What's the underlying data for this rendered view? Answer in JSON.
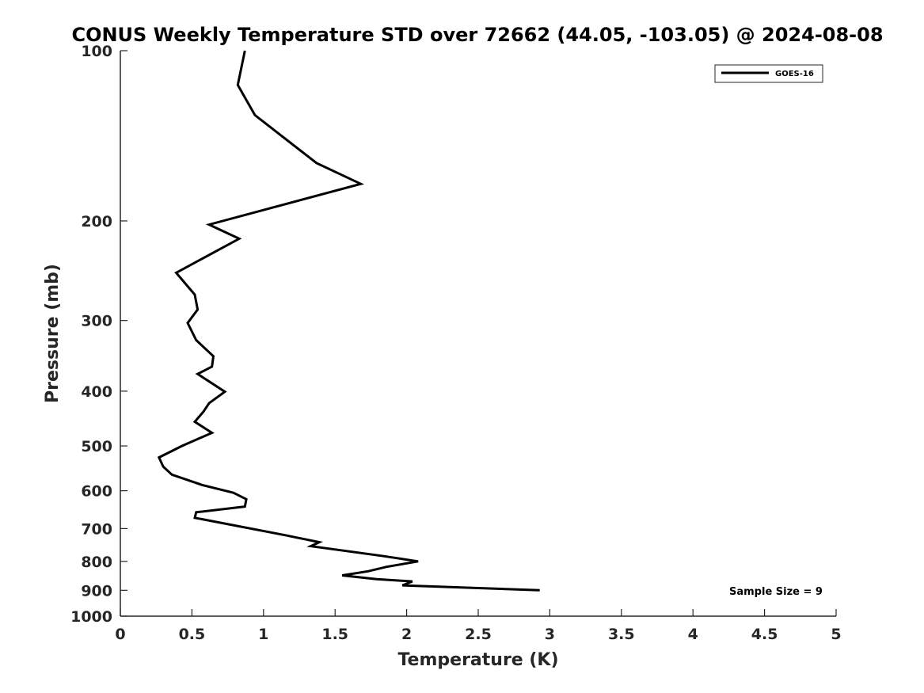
{
  "chart_data": {
    "type": "line",
    "title": "CONUS Weekly Temperature STD over 72662 (44.05, -103.05) @ 2024-08-08",
    "xlabel": "Temperature (K)",
    "ylabel": "Pressure (mb)",
    "xlim": [
      0,
      5
    ],
    "ylim": [
      1000,
      100
    ],
    "yscale": "log",
    "y_reversed": true,
    "grid": false,
    "legend_position": "top-right",
    "x_ticks": [
      "0",
      "0.5",
      "1",
      "1.5",
      "2",
      "2.5",
      "3",
      "3.5",
      "4",
      "4.5",
      "5"
    ],
    "y_ticks": [
      "100",
      "200",
      "300",
      "400",
      "500",
      "600",
      "700",
      "800",
      "900",
      "1000"
    ],
    "series": [
      {
        "name": "GOES-16",
        "color": "#000000",
        "points": [
          [
            0.87,
            100
          ],
          [
            0.82,
            115
          ],
          [
            0.94,
            130
          ],
          [
            1.37,
            158
          ],
          [
            1.68,
            172
          ],
          [
            0.62,
            203
          ],
          [
            0.83,
            215
          ],
          [
            0.39,
            247
          ],
          [
            0.52,
            270
          ],
          [
            0.54,
            287
          ],
          [
            0.47,
            303
          ],
          [
            0.53,
            325
          ],
          [
            0.65,
            347
          ],
          [
            0.64,
            362
          ],
          [
            0.54,
            373
          ],
          [
            0.73,
            401
          ],
          [
            0.62,
            420
          ],
          [
            0.58,
            435
          ],
          [
            0.52,
            453
          ],
          [
            0.64,
            474
          ],
          [
            0.43,
            500
          ],
          [
            0.27,
            524
          ],
          [
            0.3,
            544
          ],
          [
            0.36,
            562
          ],
          [
            0.57,
            586
          ],
          [
            0.79,
            605
          ],
          [
            0.88,
            621
          ],
          [
            0.87,
            640
          ],
          [
            0.53,
            655
          ],
          [
            0.52,
            670
          ],
          [
            1.15,
            719
          ],
          [
            1.39,
            740
          ],
          [
            1.33,
            752
          ],
          [
            1.82,
            782
          ],
          [
            2.08,
            800
          ],
          [
            1.86,
            818
          ],
          [
            1.73,
            833
          ],
          [
            1.55,
            847
          ],
          [
            1.79,
            860
          ],
          [
            2.04,
            868
          ],
          [
            1.97,
            882
          ],
          [
            2.93,
            900
          ]
        ]
      }
    ],
    "annotation": "Sample Size = 9"
  }
}
